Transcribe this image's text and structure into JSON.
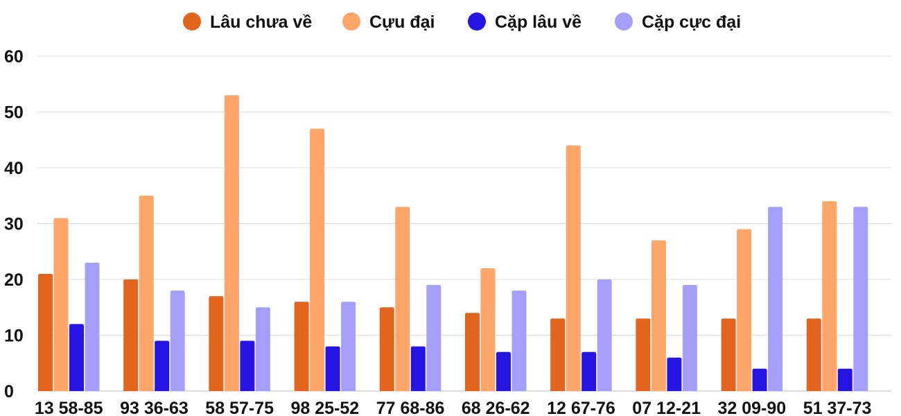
{
  "chart_data": {
    "type": "bar",
    "title": "",
    "xlabel": "",
    "ylabel": "",
    "ylim": [
      0,
      60
    ],
    "yticks": [
      0,
      10,
      20,
      30,
      40,
      50,
      60
    ],
    "grid": true,
    "legend_position": "top",
    "categories": [
      "13 58-85",
      "93 36-63",
      "58 57-75",
      "98 25-52",
      "77 68-86",
      "68 26-62",
      "12 67-76",
      "07 12-21",
      "32 09-90",
      "51 37-73"
    ],
    "series": [
      {
        "name": "Lâu chưa về",
        "color": "#e3651d",
        "values": [
          21,
          20,
          17,
          16,
          15,
          14,
          13,
          13,
          13,
          13
        ]
      },
      {
        "name": "Cựu đại",
        "color": "#fea569",
        "values": [
          31,
          35,
          53,
          47,
          33,
          22,
          44,
          27,
          29,
          34
        ]
      },
      {
        "name": "Cặp lâu về",
        "color": "#2614e3",
        "values": [
          12,
          9,
          9,
          8,
          8,
          7,
          7,
          6,
          4,
          4
        ]
      },
      {
        "name": "Cặp cực đại",
        "color": "#a59efb",
        "values": [
          23,
          18,
          15,
          16,
          19,
          18,
          20,
          19,
          33,
          33
        ]
      }
    ]
  }
}
